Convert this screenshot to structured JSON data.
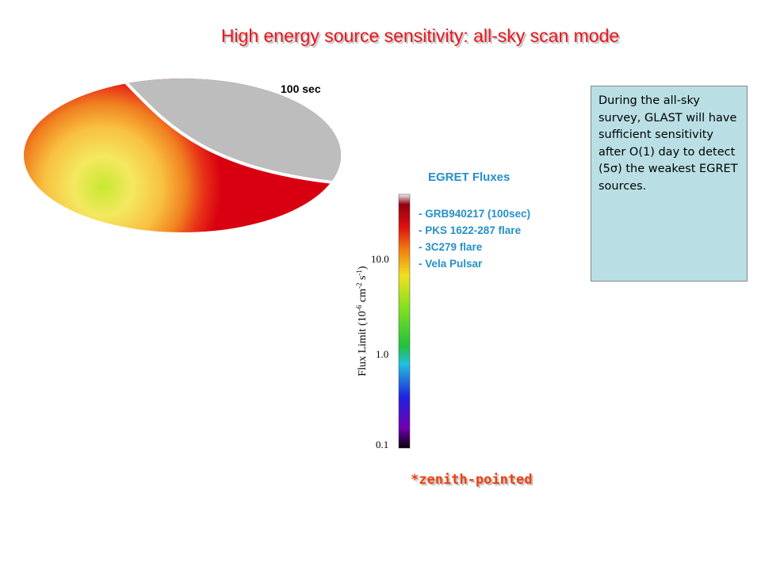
{
  "header": {
    "title": "High energy source sensitivity:  all-sky scan mode"
  },
  "map": {
    "label": "100 sec"
  },
  "legend": {
    "title": "EGRET Fluxes",
    "items": [
      "- GRB940217 (100sec)",
      "- PKS 1622-287 flare",
      "- 3C279 flare",
      "- Vela Pulsar"
    ]
  },
  "colorbar": {
    "ticks": [
      "10.0",
      "1.0",
      "0.1"
    ],
    "axis_label": {
      "parts": [
        "Flux Limit (10",
        "-6",
        " cm",
        "-2",
        " s",
        "-1",
        ")"
      ]
    }
  },
  "note": {
    "text": "During the all-sky survey, GLAST will have sufficient sensitivity after O(1) day to detect (5σ) the weakest EGRET sources."
  },
  "footnote": "*zenith-pointed"
}
